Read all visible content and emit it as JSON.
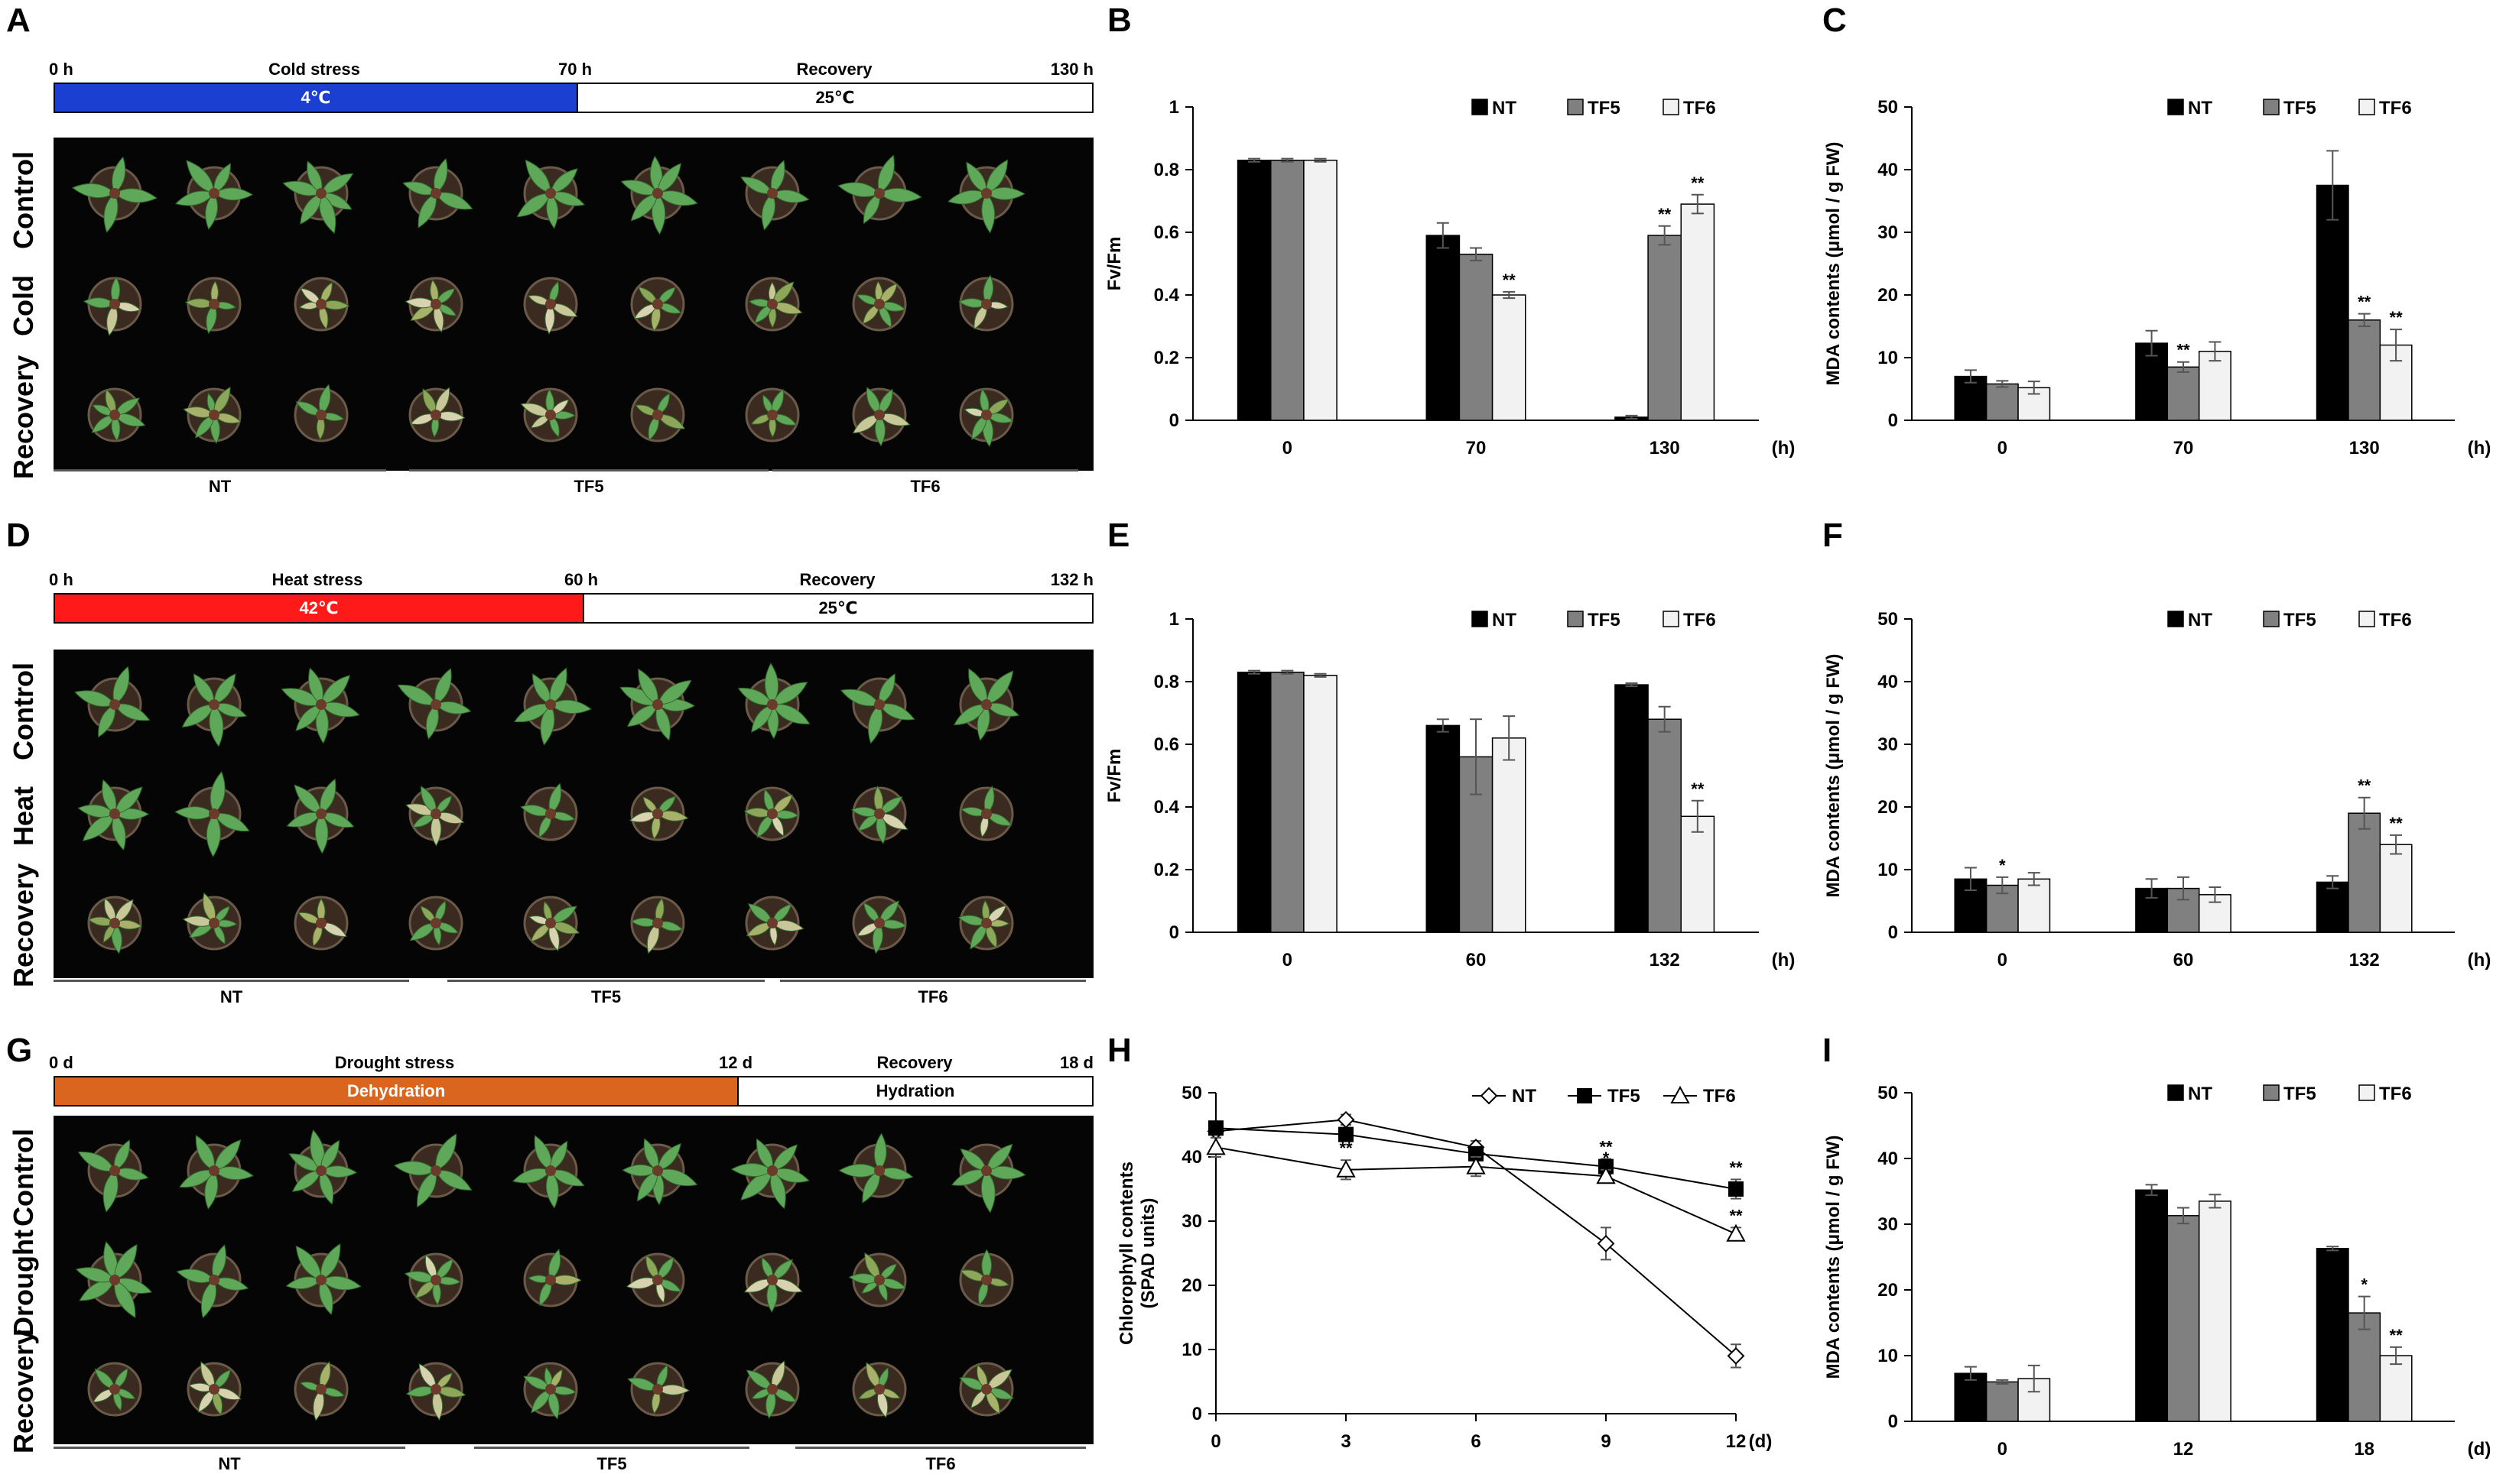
{
  "letters": {
    "A": "A",
    "B": "B",
    "C": "C",
    "D": "D",
    "E": "E",
    "F": "F",
    "G": "G",
    "H": "H",
    "I": "I"
  },
  "photo_panels": [
    {
      "id": "A",
      "start_label": "0 h",
      "stress_label": "Cold stress",
      "mid_label": "70 h",
      "recovery_label": "Recovery",
      "end_label": "130 h",
      "stress_temp": "4℃",
      "recovery_temp": "25℃",
      "stress_color": "#1a3fd1",
      "rows": [
        "Control",
        "Cold",
        "Recovery"
      ],
      "groups": [
        "NT",
        "TF5",
        "TF6"
      ]
    },
    {
      "id": "D",
      "start_label": "0 h",
      "stress_label": "Heat stress",
      "mid_label": "60 h",
      "recovery_label": "Recovery",
      "end_label": "132 h",
      "stress_temp": "42℃",
      "recovery_temp": "25℃",
      "stress_color": "#ff1a1a",
      "rows": [
        "Control",
        "Heat",
        "Recovery"
      ],
      "groups": [
        "NT",
        "TF5",
        "TF6"
      ]
    },
    {
      "id": "G",
      "start_label": "0 d",
      "stress_label": "Drought stress",
      "mid_label": "12 d",
      "recovery_label": "Recovery",
      "end_label": "18 d",
      "stress_temp": "Dehydration",
      "recovery_temp": "Hydration",
      "stress_color": "#d9651e",
      "rows": [
        "Control",
        "Drought",
        "Recovery"
      ],
      "groups": [
        "NT",
        "TF5",
        "TF6"
      ]
    }
  ],
  "colors": {
    "NT": "#000000",
    "TF5": "#808080",
    "TF6": "#f2f2f2",
    "plant": "#5fa85a",
    "plant_dark": "#2f6b2a",
    "soil": "#3b2a20"
  },
  "chart_data": [
    {
      "id": "B",
      "type": "bar",
      "categories": [
        "0",
        "70",
        "130"
      ],
      "xunit": "(h)",
      "ylabel": "Fv/Fm",
      "ylim": [
        0,
        1
      ],
      "yticks": [
        "0",
        "0.2",
        "0.4",
        "0.6",
        "0.8",
        "1"
      ],
      "legend": "top-right",
      "series": [
        {
          "name": "NT",
          "values": [
            0.83,
            0.59,
            0.01
          ],
          "errors": [
            0.005,
            0.04,
            0.005
          ],
          "marks": [
            "",
            "",
            ""
          ]
        },
        {
          "name": "TF5",
          "values": [
            0.83,
            0.53,
            0.59
          ],
          "errors": [
            0.005,
            0.02,
            0.03
          ],
          "marks": [
            "",
            "",
            "**"
          ]
        },
        {
          "name": "TF6",
          "values": [
            0.83,
            0.4,
            0.69
          ],
          "errors": [
            0.005,
            0.01,
            0.03
          ],
          "marks": [
            "",
            "**",
            "**"
          ]
        }
      ]
    },
    {
      "id": "C",
      "type": "bar",
      "categories": [
        "0",
        "70",
        "130"
      ],
      "xunit": "(h)",
      "ylabel": "MDA contents (μmol / g FW)",
      "ylim": [
        0,
        50
      ],
      "yticks": [
        "0",
        "10",
        "20",
        "30",
        "40",
        "50"
      ],
      "legend": "top-right",
      "series": [
        {
          "name": "NT",
          "values": [
            7.0,
            12.3,
            37.5
          ],
          "errors": [
            1.0,
            2.0,
            5.5
          ],
          "marks": [
            "",
            "",
            ""
          ]
        },
        {
          "name": "TF5",
          "values": [
            5.8,
            8.5,
            16.0
          ],
          "errors": [
            0.5,
            0.8,
            1.0
          ],
          "marks": [
            "",
            "**",
            "**"
          ]
        },
        {
          "name": "TF6",
          "values": [
            5.2,
            11.0,
            12.0
          ],
          "errors": [
            1.0,
            1.5,
            2.5
          ],
          "marks": [
            "",
            "",
            "**"
          ]
        }
      ]
    },
    {
      "id": "E",
      "type": "bar",
      "categories": [
        "0",
        "60",
        "132"
      ],
      "xunit": "(h)",
      "ylabel": "Fv/Fm",
      "ylim": [
        0,
        1
      ],
      "yticks": [
        "0",
        "0.2",
        "0.4",
        "0.6",
        "0.8",
        "1"
      ],
      "legend": "top-right",
      "series": [
        {
          "name": "NT",
          "values": [
            0.83,
            0.66,
            0.79
          ],
          "errors": [
            0.005,
            0.02,
            0.005
          ],
          "marks": [
            "",
            "",
            ""
          ]
        },
        {
          "name": "TF5",
          "values": [
            0.83,
            0.56,
            0.68
          ],
          "errors": [
            0.005,
            0.12,
            0.04
          ],
          "marks": [
            "",
            "",
            ""
          ]
        },
        {
          "name": "TF6",
          "values": [
            0.82,
            0.62,
            0.37
          ],
          "errors": [
            0.005,
            0.07,
            0.05
          ],
          "marks": [
            "",
            "",
            "**"
          ]
        }
      ]
    },
    {
      "id": "F",
      "type": "bar",
      "categories": [
        "0",
        "60",
        "132"
      ],
      "xunit": "(h)",
      "ylabel": "MDA contents (μmol / g FW)",
      "ylim": [
        0,
        50
      ],
      "yticks": [
        "0",
        "10",
        "20",
        "30",
        "40",
        "50"
      ],
      "legend": "top-right",
      "series": [
        {
          "name": "NT",
          "values": [
            8.5,
            7.0,
            8.0
          ],
          "errors": [
            1.8,
            1.5,
            1.0
          ],
          "marks": [
            "",
            "",
            ""
          ]
        },
        {
          "name": "TF5",
          "values": [
            7.5,
            7.0,
            19.0
          ],
          "errors": [
            1.3,
            1.8,
            2.5
          ],
          "marks": [
            "*",
            "",
            "**"
          ]
        },
        {
          "name": "TF6",
          "values": [
            8.5,
            6.0,
            14.0
          ],
          "errors": [
            1.0,
            1.2,
            1.5
          ],
          "marks": [
            "",
            "",
            "**"
          ]
        }
      ]
    },
    {
      "id": "H",
      "type": "line",
      "x": [
        0,
        3,
        6,
        9,
        12
      ],
      "xticks": [
        "0",
        "3",
        "6",
        "9",
        "12"
      ],
      "xunit": "(d)",
      "ylabel": "Chlorophyll contents\n(SPAD units)",
      "ylim": [
        0,
        50
      ],
      "yticks": [
        "0",
        "10",
        "20",
        "30",
        "40",
        "50"
      ],
      "legend": "top-right",
      "series": [
        {
          "name": "NT",
          "marker": "diamond",
          "values": [
            44.0,
            45.8,
            41.5,
            26.5,
            9.0
          ],
          "errors": [
            1.0,
            0.8,
            1.0,
            2.5,
            1.8
          ],
          "marks": [
            "",
            "",
            "",
            "",
            ""
          ]
        },
        {
          "name": "TF5",
          "marker": "square",
          "values": [
            44.5,
            43.5,
            40.5,
            38.5,
            35.0
          ],
          "errors": [
            1.0,
            1.0,
            1.0,
            1.2,
            1.5
          ],
          "marks": [
            "",
            "",
            "",
            "**",
            "**"
          ]
        },
        {
          "name": "TF6",
          "marker": "triangle",
          "values": [
            41.5,
            38.0,
            38.5,
            37.0,
            28.0
          ],
          "errors": [
            1.5,
            1.5,
            1.5,
            1.0,
            1.0
          ],
          "marks": [
            "",
            "**",
            "",
            "*",
            "**"
          ]
        }
      ]
    },
    {
      "id": "I",
      "type": "bar",
      "categories": [
        "0",
        "12",
        "18"
      ],
      "xunit": "(d)",
      "ylabel": "MDA contents (μmol / g FW)",
      "ylim": [
        0,
        50
      ],
      "yticks": [
        "0",
        "10",
        "20",
        "30",
        "40",
        "50"
      ],
      "legend": "top-right",
      "series": [
        {
          "name": "NT",
          "values": [
            7.3,
            35.2,
            26.3
          ],
          "errors": [
            1.0,
            0.8,
            0.3
          ],
          "marks": [
            "",
            "",
            ""
          ]
        },
        {
          "name": "TF5",
          "values": [
            6.0,
            31.3,
            16.5
          ],
          "errors": [
            0.3,
            1.2,
            2.5
          ],
          "marks": [
            "",
            "",
            "*"
          ]
        },
        {
          "name": "TF6",
          "values": [
            6.5,
            33.5,
            10.0
          ],
          "errors": [
            2.0,
            1.0,
            1.3
          ],
          "marks": [
            "",
            "",
            "**"
          ]
        }
      ]
    }
  ]
}
